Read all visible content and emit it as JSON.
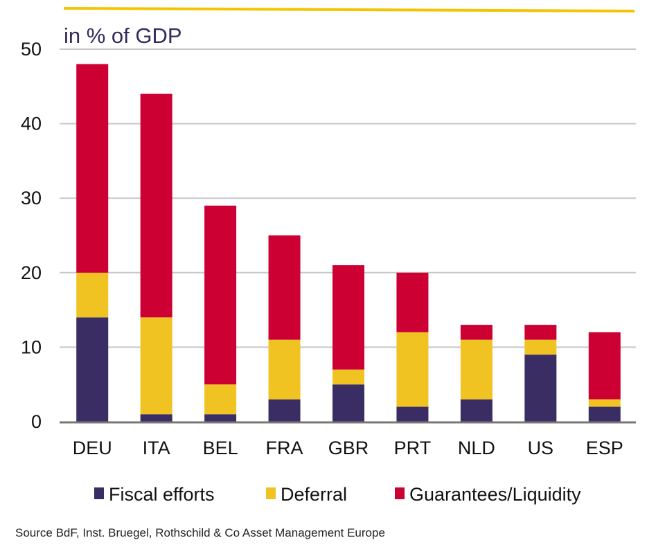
{
  "chart_data": {
    "type": "bar",
    "stacked": true,
    "title": "",
    "unit_label": "in % of GDP",
    "xlabel": "",
    "ylabel": "",
    "ylim": [
      0,
      50
    ],
    "yticks": [
      0,
      10,
      20,
      30,
      40,
      50
    ],
    "grid": true,
    "legend_position": "bottom",
    "categories": [
      "DEU",
      "ITA",
      "BEL",
      "FRA",
      "GBR",
      "PRT",
      "NLD",
      "US",
      "ESP"
    ],
    "series": [
      {
        "name": "Fiscal efforts",
        "color": "#3a2d64",
        "values": [
          14,
          1,
          1,
          3,
          5,
          2,
          3,
          9,
          2
        ]
      },
      {
        "name": "Deferral",
        "color": "#f0c323",
        "values": [
          6,
          13,
          4,
          8,
          2,
          10,
          8,
          2,
          1
        ]
      },
      {
        "name": "Guarantees/Liquidity",
        "color": "#cc0033",
        "values": [
          28,
          30,
          24,
          14,
          14,
          8,
          2,
          2,
          9
        ]
      }
    ],
    "source": "Source BdF, Inst. Bruegel, Rothschild & Co Asset Management Europe"
  },
  "colors": {
    "accent_line": "#f2c500",
    "grid": "#c8c8c8",
    "axis": "#777777",
    "unit_label": "#332a5e"
  }
}
